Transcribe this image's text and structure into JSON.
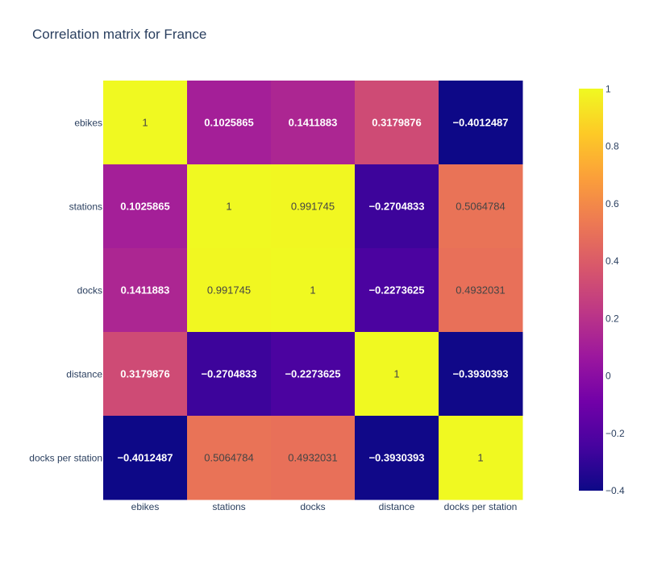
{
  "chart_data": {
    "type": "heatmap",
    "title": "Correlation matrix for France",
    "x_categories": [
      "ebikes",
      "stations",
      "docks",
      "distance",
      "docks per station"
    ],
    "y_categories": [
      "ebikes",
      "stations",
      "docks",
      "distance",
      "docks per station"
    ],
    "z": [
      [
        1,
        0.1025865,
        0.1411883,
        0.3179876,
        -0.4012487
      ],
      [
        0.1025865,
        1,
        0.991745,
        -0.2704833,
        0.5064784
      ],
      [
        0.1411883,
        0.991745,
        1,
        -0.2273625,
        0.4932031
      ],
      [
        0.3179876,
        -0.2704833,
        -0.2273625,
        1,
        -0.3930393
      ],
      [
        -0.4012487,
        0.5064784,
        0.4932031,
        -0.3930393,
        1
      ]
    ],
    "text": [
      [
        "1",
        "0.1025865",
        "0.1411883",
        "0.3179876",
        "−0.4012487"
      ],
      [
        "0.1025865",
        "1",
        "0.991745",
        "−0.2704833",
        "0.5064784"
      ],
      [
        "0.1411883",
        "0.991745",
        "1",
        "−0.2273625",
        "0.4932031"
      ],
      [
        "0.3179876",
        "−0.2704833",
        "−0.2273625",
        "1",
        "−0.3930393"
      ],
      [
        "−0.4012487",
        "0.5064784",
        "0.4932031",
        "−0.3930393",
        "1"
      ]
    ],
    "zmin": -0.4012487,
    "zmax": 1,
    "colorscale": "plasma",
    "colorbar": {
      "tickvals": [
        1,
        0.8,
        0.6,
        0.4,
        0.2,
        0,
        -0.2,
        -0.4
      ],
      "ticktext": [
        "1",
        "0.8",
        "0.6",
        "0.4",
        "0.2",
        "0",
        "−0.2",
        "−0.4"
      ]
    },
    "colors": {
      "plasma_stops": [
        "#0d0887",
        "#46039f",
        "#7201a8",
        "#9c179e",
        "#bd3786",
        "#d8576b",
        "#ed7953",
        "#fb9f3a",
        "#fdca26",
        "#f0f921"
      ],
      "text_dark": "#444444",
      "text_light": "#ffffff",
      "axis_text": "#2a3f5f"
    }
  }
}
